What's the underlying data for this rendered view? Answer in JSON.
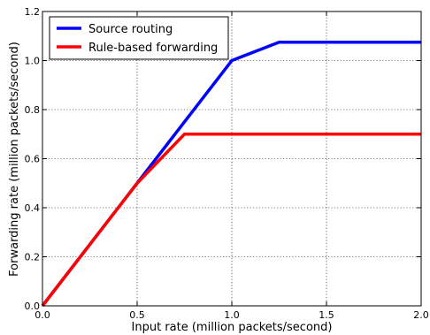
{
  "chart_data": {
    "type": "line",
    "title": "",
    "xlabel": "Input rate (million packets/second)",
    "ylabel": "Forwarding rate (million packets/second)",
    "xlim": [
      0.0,
      2.0
    ],
    "ylim": [
      0.0,
      1.2
    ],
    "xticks": [
      "0.0",
      "0.5",
      "1.0",
      "1.5",
      "2.0"
    ],
    "yticks": [
      "0.0",
      "0.2",
      "0.4",
      "0.6",
      "0.8",
      "1.0",
      "1.2"
    ],
    "grid": true,
    "legend_position": "top-left",
    "series": [
      {
        "name": "Source routing",
        "color": "#0000ff",
        "x": [
          0.0,
          0.5,
          1.0,
          1.25,
          2.0
        ],
        "y": [
          0.0,
          0.5,
          1.0,
          1.075,
          1.075
        ]
      },
      {
        "name": "Rule-based forwarding",
        "color": "#ff0000",
        "x": [
          0.0,
          0.5,
          0.75,
          2.0
        ],
        "y": [
          0.0,
          0.5,
          0.7,
          0.7
        ]
      }
    ]
  }
}
